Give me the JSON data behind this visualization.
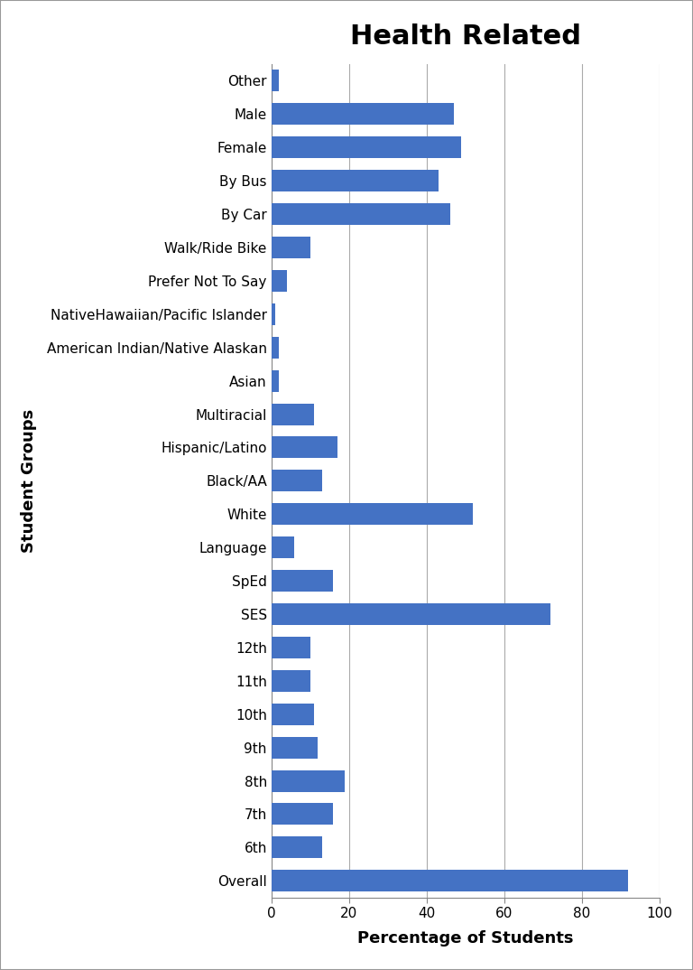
{
  "title": "Health Related",
  "xlabel": "Percentage of Students",
  "ylabel": "Student Groups",
  "categories": [
    "Overall",
    "6th",
    "7th",
    "8th",
    "9th",
    "10th",
    "11th",
    "12th",
    "SES",
    "SpEd",
    "Language",
    "White",
    "Black/AA",
    "Hispanic/Latino",
    "Multiracial",
    "Asian",
    "American Indian/Native Alaskan",
    "NativeHawaiian/Pacific Islander",
    "Prefer Not To Say",
    "Walk/Ride Bike",
    "By Car",
    "By Bus",
    "Female",
    "Male",
    "Other"
  ],
  "values": [
    92,
    13,
    16,
    19,
    12,
    11,
    10,
    10,
    72,
    16,
    6,
    52,
    13,
    17,
    11,
    2,
    2,
    1,
    4,
    10,
    46,
    43,
    49,
    47,
    2
  ],
  "bar_color": "#4472C4",
  "xlim": [
    0,
    100
  ],
  "xticks": [
    0,
    20,
    40,
    60,
    80,
    100
  ],
  "background_color": "#ffffff",
  "border_color": "#999999",
  "title_fontsize": 22,
  "title_fontweight": "bold",
  "label_fontsize": 13,
  "tick_fontsize": 11,
  "bar_height": 0.65,
  "grid_color": "#aaaaaa",
  "grid_linewidth": 0.8
}
